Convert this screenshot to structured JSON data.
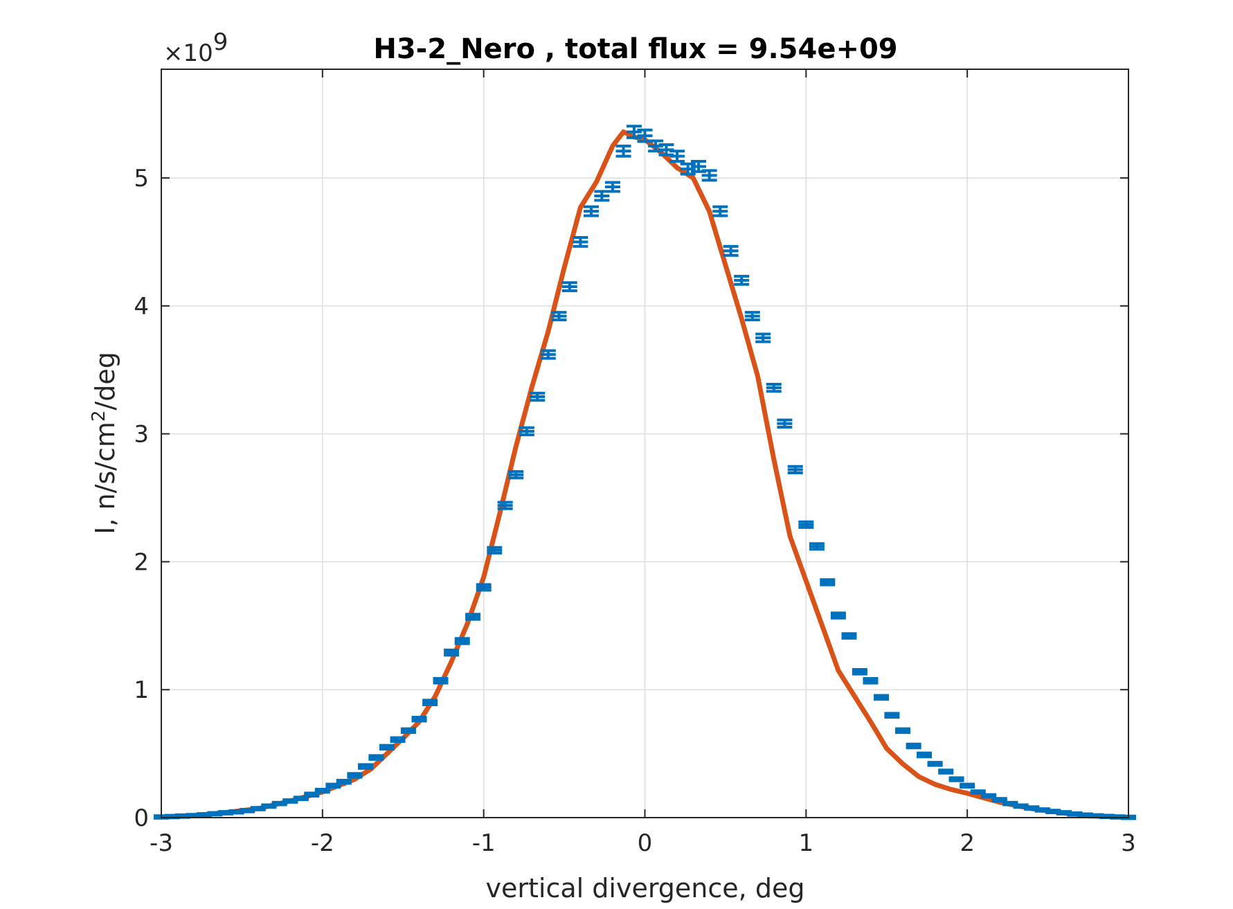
{
  "chart_data": {
    "type": "line",
    "title": "H3-2_Nero , total flux =  9.54e+09",
    "xlabel": "vertical divergence, deg",
    "ylabel": "I, n/s/cm²/deg",
    "ylabel_parts": {
      "before": "I, n/s/cm",
      "sup": "2",
      "after": "/deg"
    },
    "y_multiplier": {
      "base": "×10",
      "exponent": "9"
    },
    "xlim": [
      -3,
      3
    ],
    "ylim": [
      0,
      5.85
    ],
    "xticks": [
      "-3",
      "-2",
      "-1",
      "0",
      "1",
      "2",
      "3"
    ],
    "yticks": [
      "0",
      "1",
      "2",
      "3",
      "4",
      "5"
    ],
    "grid": true,
    "colors": {
      "data": "#0072BD",
      "fit": "#D95319",
      "grid": "#dddddd",
      "axis": "#262626"
    },
    "series": [
      {
        "style": "errorbar",
        "color": "#0072BD",
        "x": [
          -3.0,
          -2.933,
          -2.867,
          -2.8,
          -2.733,
          -2.667,
          -2.6,
          -2.533,
          -2.467,
          -2.4,
          -2.333,
          -2.267,
          -2.2,
          -2.133,
          -2.067,
          -2.0,
          -1.933,
          -1.867,
          -1.8,
          -1.733,
          -1.667,
          -1.6,
          -1.533,
          -1.467,
          -1.4,
          -1.333,
          -1.267,
          -1.2,
          -1.133,
          -1.067,
          -1.0,
          -0.933,
          -0.867,
          -0.8,
          -0.733,
          -0.667,
          -0.6,
          -0.533,
          -0.467,
          -0.4,
          -0.333,
          -0.267,
          -0.2,
          -0.133,
          -0.067,
          0.0,
          0.067,
          0.133,
          0.2,
          0.267,
          0.333,
          0.4,
          0.467,
          0.533,
          0.6,
          0.667,
          0.733,
          0.8,
          0.867,
          0.933,
          1.0,
          1.067,
          1.133,
          1.2,
          1.267,
          1.333,
          1.4,
          1.467,
          1.533,
          1.6,
          1.667,
          1.733,
          1.8,
          1.867,
          1.933,
          2.0,
          2.067,
          2.133,
          2.2,
          2.267,
          2.333,
          2.4,
          2.467,
          2.533,
          2.6,
          2.667,
          2.733,
          2.8,
          2.867,
          2.933,
          3.0
        ],
        "y": [
          0.005,
          0.008,
          0.012,
          0.016,
          0.022,
          0.03,
          0.038,
          0.045,
          0.055,
          0.07,
          0.09,
          0.11,
          0.13,
          0.15,
          0.18,
          0.21,
          0.25,
          0.28,
          0.33,
          0.4,
          0.47,
          0.55,
          0.61,
          0.68,
          0.77,
          0.9,
          1.07,
          1.29,
          1.38,
          1.57,
          1.8,
          2.09,
          2.44,
          2.68,
          3.02,
          3.29,
          3.62,
          3.92,
          4.15,
          4.5,
          4.74,
          4.86,
          4.93,
          5.21,
          5.36,
          5.33,
          5.25,
          5.22,
          5.17,
          5.07,
          5.09,
          5.02,
          4.74,
          4.43,
          4.2,
          3.92,
          3.75,
          3.36,
          3.08,
          2.72,
          2.29,
          2.12,
          1.84,
          1.58,
          1.42,
          1.14,
          1.07,
          0.94,
          0.8,
          0.68,
          0.56,
          0.49,
          0.42,
          0.36,
          0.3,
          0.25,
          0.2,
          0.17,
          0.14,
          0.11,
          0.09,
          0.075,
          0.06,
          0.048,
          0.038,
          0.028,
          0.02,
          0.014,
          0.009,
          0.005,
          0.002
        ],
        "errors": [
          0.01,
          0.01,
          0.01,
          0.01,
          0.01,
          0.01,
          0.01,
          0.01,
          0.01,
          0.01,
          0.01,
          0.01,
          0.01,
          0.01,
          0.012,
          0.012,
          0.012,
          0.012,
          0.015,
          0.015,
          0.015,
          0.015,
          0.015,
          0.015,
          0.015,
          0.018,
          0.018,
          0.02,
          0.02,
          0.02,
          0.022,
          0.022,
          0.025,
          0.025,
          0.028,
          0.028,
          0.03,
          0.03,
          0.032,
          0.035,
          0.035,
          0.035,
          0.035,
          0.04,
          0.045,
          0.045,
          0.04,
          0.04,
          0.04,
          0.04,
          0.04,
          0.038,
          0.035,
          0.035,
          0.032,
          0.03,
          0.03,
          0.028,
          0.028,
          0.025,
          0.022,
          0.022,
          0.02,
          0.02,
          0.018,
          0.018,
          0.018,
          0.015,
          0.015,
          0.015,
          0.015,
          0.015,
          0.012,
          0.012,
          0.012,
          0.012,
          0.01,
          0.01,
          0.01,
          0.01,
          0.01,
          0.01,
          0.01,
          0.01,
          0.01,
          0.01,
          0.01,
          0.01,
          0.01,
          0.01,
          0.01
        ]
      },
      {
        "style": "line",
        "color": "#D95319",
        "x": [
          -3.0,
          -2.8,
          -2.6,
          -2.4,
          -2.2,
          -2.0,
          -1.9,
          -1.8,
          -1.7,
          -1.6,
          -1.5,
          -1.4,
          -1.3,
          -1.2,
          -1.1,
          -1.0,
          -0.9,
          -0.8,
          -0.7,
          -0.6,
          -0.5,
          -0.4,
          -0.3,
          -0.2,
          -0.133,
          -0.067,
          0.0,
          0.1,
          0.2,
          0.3,
          0.4,
          0.5,
          0.6,
          0.7,
          0.8,
          0.9,
          1.0,
          1.1,
          1.2,
          1.3,
          1.4,
          1.5,
          1.6,
          1.7,
          1.8,
          1.9,
          2.0,
          2.2,
          2.4,
          2.6,
          2.8,
          3.0
        ],
        "y": [
          0.005,
          0.016,
          0.04,
          0.07,
          0.13,
          0.2,
          0.25,
          0.3,
          0.38,
          0.5,
          0.62,
          0.75,
          0.95,
          1.22,
          1.52,
          1.88,
          2.38,
          2.9,
          3.37,
          3.8,
          4.3,
          4.77,
          4.97,
          5.25,
          5.36,
          5.32,
          5.3,
          5.2,
          5.08,
          5.0,
          4.74,
          4.32,
          3.9,
          3.45,
          2.8,
          2.2,
          1.85,
          1.5,
          1.15,
          0.95,
          0.75,
          0.54,
          0.42,
          0.32,
          0.26,
          0.22,
          0.19,
          0.12,
          0.07,
          0.035,
          0.012,
          0.002
        ]
      }
    ]
  }
}
